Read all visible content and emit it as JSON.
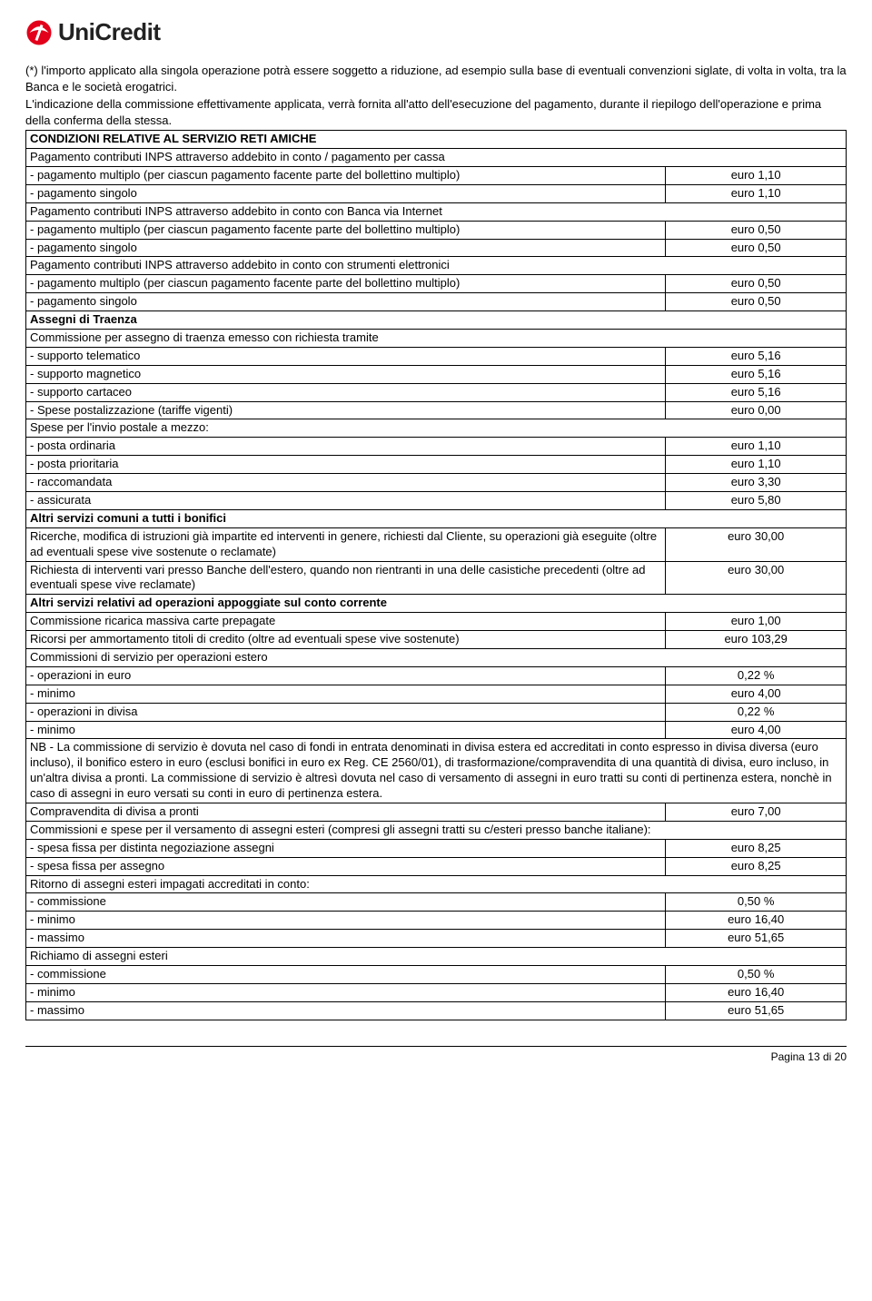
{
  "brand": {
    "name": "UniCredit",
    "logo_color": "#e2001a",
    "text_color": "#222222"
  },
  "intro_paragraphs": [
    "(*) l'importo applicato alla singola operazione potrà essere soggetto a riduzione, ad esempio sulla base di eventuali convenzioni siglate, di volta in volta, tra la Banca e le società erogatrici.",
    "L'indicazione della commissione effettivamente applicata, verrà fornita all'atto dell'esecuzione del pagamento, durante il riepilogo dell'operazione e prima della conferma della stessa."
  ],
  "columns": {
    "label_width_pct": 78,
    "value_width_pct": 22
  },
  "rows": [
    {
      "label": "CONDIZIONI RELATIVE AL SERVIZIO RETI AMICHE",
      "full": true,
      "bold": true
    },
    {
      "label": "Pagamento contributi INPS attraverso addebito in conto / pagamento per cassa",
      "full": true
    },
    {
      "label": "- pagamento multiplo (per ciascun pagamento facente parte del bollettino multiplo)",
      "value": "euro 1,10"
    },
    {
      "label": "- pagamento singolo",
      "value": "euro 1,10"
    },
    {
      "label": "Pagamento contributi INPS attraverso addebito in conto con Banca via Internet",
      "full": true
    },
    {
      "label": "- pagamento multiplo (per ciascun pagamento facente parte del bollettino multiplo)",
      "value": "euro 0,50"
    },
    {
      "label": "- pagamento singolo",
      "value": "euro 0,50"
    },
    {
      "label": "Pagamento contributi INPS attraverso addebito in conto con strumenti elettronici",
      "full": true
    },
    {
      "label": "- pagamento multiplo (per ciascun pagamento facente parte del bollettino multiplo)",
      "value": "euro 0,50"
    },
    {
      "label": "- pagamento singolo",
      "value": "euro 0,50"
    },
    {
      "label": "Assegni di Traenza",
      "full": true,
      "bold": true
    },
    {
      "label": "Commissione per assegno di traenza emesso con richiesta tramite",
      "full": true
    },
    {
      "label": "- supporto telematico",
      "value": "euro 5,16"
    },
    {
      "label": "- supporto magnetico",
      "value": "euro 5,16"
    },
    {
      "label": "- supporto cartaceo",
      "value": "euro 5,16"
    },
    {
      "label": "- Spese postalizzazione (tariffe vigenti)",
      "value": "euro 0,00"
    },
    {
      "label": "Spese per l'invio postale a mezzo:",
      "full": true
    },
    {
      "label": "- posta ordinaria",
      "value": "euro 1,10"
    },
    {
      "label": "- posta prioritaria",
      "value": "euro 1,10"
    },
    {
      "label": "- raccomandata",
      "value": "euro 3,30"
    },
    {
      "label": "- assicurata",
      "value": "euro 5,80"
    },
    {
      "label": "Altri servizi comuni a tutti i bonifici",
      "full": true,
      "bold": true
    },
    {
      "label": "Ricerche, modifica di istruzioni già impartite ed interventi in genere, richiesti dal Cliente, su operazioni già eseguite (oltre ad eventuali spese vive sostenute o reclamate)",
      "value": "euro 30,00"
    },
    {
      "label": "Richiesta di interventi vari presso Banche dell'estero, quando non rientranti in una delle casistiche precedenti (oltre ad eventuali spese vive reclamate)",
      "value": "euro 30,00"
    },
    {
      "label": "Altri servizi relativi ad operazioni appoggiate sul conto corrente",
      "full": true,
      "bold": true
    },
    {
      "label": "Commissione ricarica massiva carte prepagate",
      "value": "euro 1,00"
    },
    {
      "label": "Ricorsi per ammortamento titoli di credito (oltre ad eventuali spese vive sostenute)",
      "value": "euro 103,29"
    },
    {
      "label": "Commissioni di servizio per operazioni estero",
      "full": true
    },
    {
      "label": "- operazioni in euro",
      "value": "0,22 %"
    },
    {
      "label": "- minimo",
      "value": "euro 4,00"
    },
    {
      "label": "- operazioni in divisa",
      "value": "0,22 %"
    },
    {
      "label": "- minimo",
      "value": "euro 4,00"
    },
    {
      "label": "NB - La commissione di servizio è dovuta nel caso di fondi in entrata denominati in divisa estera ed accreditati in conto espresso in divisa diversa (euro incluso), il bonifico estero in euro (esclusi bonifici in euro ex Reg. CE 2560/01), di trasformazione/compravendita di una quantità di divisa, euro incluso, in un'altra divisa a pronti. La commissione di servizio è altresì dovuta nel caso di versamento di assegni in euro tratti su conti di pertinenza estera, nonchè in caso di assegni in euro versati su conti in euro di pertinenza estera.",
      "full": true
    },
    {
      "label": "Compravendita di divisa a pronti",
      "value": "euro 7,00"
    },
    {
      "label": "Commissioni e spese per il versamento di assegni esteri (compresi gli assegni tratti su c/esteri presso banche italiane):",
      "full": true
    },
    {
      "label": "- spesa fissa per distinta negoziazione assegni",
      "value": "euro 8,25"
    },
    {
      "label": "- spesa fissa per assegno",
      "value": "euro 8,25"
    },
    {
      "label": "Ritorno di assegni esteri impagati accreditati in conto:",
      "full": true
    },
    {
      "label": "- commissione",
      "value": "0,50 %"
    },
    {
      "label": "- minimo",
      "value": "euro 16,40"
    },
    {
      "label": "- massimo",
      "value": "euro 51,65"
    },
    {
      "label": "Richiamo di assegni esteri",
      "full": true
    },
    {
      "label": "- commissione",
      "value": "0,50 %"
    },
    {
      "label": "- minimo",
      "value": "euro 16,40"
    },
    {
      "label": "- massimo",
      "value": "euro 51,65"
    }
  ],
  "footer": {
    "text": "Pagina 13 di  20"
  }
}
